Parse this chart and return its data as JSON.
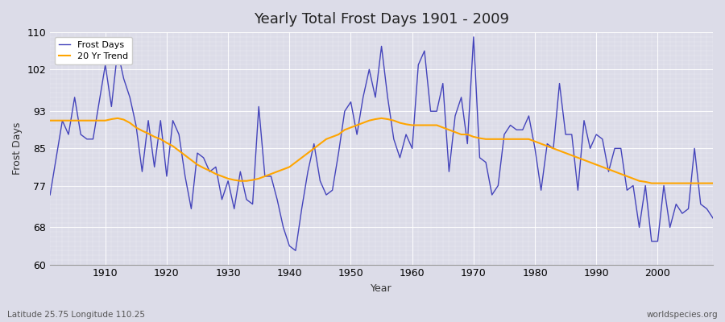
{
  "title": "Yearly Total Frost Days 1901 - 2009",
  "xlabel": "Year",
  "ylabel": "Frost Days",
  "subtitle_left": "Latitude 25.75 Longitude 110.25",
  "subtitle_right": "worldspecies.org",
  "ylim": [
    60,
    110
  ],
  "yticks": [
    60,
    68,
    77,
    85,
    93,
    102,
    110
  ],
  "line_color": "#4444bb",
  "trend_color": "#FFA500",
  "bg_color": "#dcdce8",
  "fig_bg_color": "#dcdce8",
  "frost_days": {
    "1901": 75,
    "1902": 83,
    "1903": 91,
    "1904": 88,
    "1905": 96,
    "1906": 88,
    "1907": 87,
    "1908": 87,
    "1909": 95,
    "1910": 103,
    "1911": 94,
    "1912": 106,
    "1913": 100,
    "1914": 96,
    "1915": 90,
    "1916": 80,
    "1917": 91,
    "1918": 81,
    "1919": 91,
    "1920": 79,
    "1921": 91,
    "1922": 88,
    "1923": 79,
    "1924": 72,
    "1925": 84,
    "1926": 83,
    "1927": 80,
    "1928": 81,
    "1929": 74,
    "1930": 78,
    "1931": 72,
    "1932": 80,
    "1933": 74,
    "1934": 73,
    "1935": 94,
    "1936": 79,
    "1937": 79,
    "1938": 74,
    "1939": 68,
    "1940": 64,
    "1941": 63,
    "1942": 72,
    "1943": 80,
    "1944": 86,
    "1945": 78,
    "1946": 75,
    "1947": 76,
    "1948": 84,
    "1949": 93,
    "1950": 95,
    "1951": 88,
    "1952": 96,
    "1953": 102,
    "1954": 96,
    "1955": 107,
    "1956": 96,
    "1957": 87,
    "1958": 83,
    "1959": 88,
    "1960": 85,
    "1961": 103,
    "1962": 106,
    "1963": 93,
    "1964": 93,
    "1965": 99,
    "1966": 80,
    "1967": 92,
    "1968": 96,
    "1969": 86,
    "1970": 109,
    "1971": 83,
    "1972": 82,
    "1973": 75,
    "1974": 77,
    "1975": 88,
    "1976": 90,
    "1977": 89,
    "1978": 89,
    "1979": 92,
    "1980": 85,
    "1981": 76,
    "1982": 86,
    "1983": 85,
    "1984": 99,
    "1985": 88,
    "1986": 88,
    "1987": 76,
    "1988": 91,
    "1989": 85,
    "1990": 88,
    "1991": 87,
    "1992": 80,
    "1993": 85,
    "1994": 85,
    "1995": 76,
    "1996": 77,
    "1997": 68,
    "1998": 77,
    "1999": 65,
    "2000": 65,
    "2001": 77,
    "2002": 68,
    "2003": 73,
    "2004": 71,
    "2005": 72,
    "2006": 85,
    "2007": 73,
    "2008": 72,
    "2009": 70
  },
  "trend_20yr": {
    "1901": 91.0,
    "1902": 91.0,
    "1903": 91.0,
    "1904": 91.0,
    "1905": 91.0,
    "1906": 91.0,
    "1907": 91.0,
    "1908": 91.0,
    "1909": 91.0,
    "1910": 91.0,
    "1911": 91.3,
    "1912": 91.5,
    "1913": 91.2,
    "1914": 90.5,
    "1915": 89.5,
    "1916": 88.8,
    "1917": 88.2,
    "1918": 87.5,
    "1919": 87.0,
    "1920": 86.2,
    "1921": 85.5,
    "1922": 84.5,
    "1923": 83.5,
    "1924": 82.5,
    "1925": 81.5,
    "1926": 80.8,
    "1927": 80.2,
    "1928": 79.5,
    "1929": 79.0,
    "1930": 78.5,
    "1931": 78.2,
    "1932": 78.0,
    "1933": 78.0,
    "1934": 78.2,
    "1935": 78.5,
    "1936": 79.0,
    "1937": 79.5,
    "1938": 80.0,
    "1939": 80.5,
    "1940": 81.0,
    "1941": 82.0,
    "1942": 83.0,
    "1943": 84.0,
    "1944": 85.0,
    "1945": 86.0,
    "1946": 87.0,
    "1947": 87.5,
    "1948": 88.0,
    "1949": 89.0,
    "1950": 89.5,
    "1951": 90.0,
    "1952": 90.5,
    "1953": 91.0,
    "1954": 91.3,
    "1955": 91.5,
    "1956": 91.3,
    "1957": 91.0,
    "1958": 90.5,
    "1959": 90.2,
    "1960": 90.0,
    "1961": 90.0,
    "1962": 90.0,
    "1963": 90.0,
    "1964": 90.0,
    "1965": 89.5,
    "1966": 89.0,
    "1967": 88.5,
    "1968": 88.0,
    "1969": 88.0,
    "1970": 87.5,
    "1971": 87.2,
    "1972": 87.0,
    "1973": 87.0,
    "1974": 87.0,
    "1975": 87.0,
    "1976": 87.0,
    "1977": 87.0,
    "1978": 87.0,
    "1979": 87.0,
    "1980": 86.5,
    "1981": 86.0,
    "1982": 85.5,
    "1983": 85.0,
    "1984": 84.5,
    "1985": 84.0,
    "1986": 83.5,
    "1987": 83.0,
    "1988": 82.5,
    "1989": 82.0,
    "1990": 81.5,
    "1991": 81.0,
    "1992": 80.5,
    "1993": 80.0,
    "1994": 79.5,
    "1995": 79.0,
    "1996": 78.5,
    "1997": 78.0,
    "1998": 77.8,
    "1999": 77.5,
    "2000": 77.5,
    "2001": 77.5,
    "2002": 77.5,
    "2003": 77.5,
    "2004": 77.5,
    "2005": 77.5,
    "2006": 77.5,
    "2007": 77.5,
    "2008": 77.5,
    "2009": 77.5
  }
}
